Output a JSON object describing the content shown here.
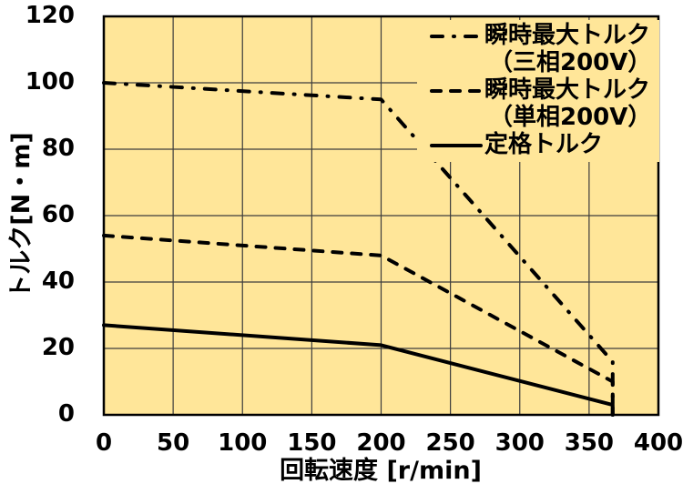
{
  "chart_data": {
    "type": "line",
    "title": "",
    "xlabel": "回転速度 [r/min]",
    "ylabel": "トルク[N・m]",
    "xlim": [
      0,
      400
    ],
    "ylim": [
      0,
      120
    ],
    "x_ticks": [
      0,
      50,
      100,
      150,
      200,
      250,
      300,
      350,
      400
    ],
    "y_ticks": [
      0,
      20,
      40,
      60,
      80,
      100,
      120
    ],
    "grid": true,
    "plot_bg_color": "#FFE699",
    "grid_color": "#3d3d3d",
    "line_color": "#000000",
    "series": [
      {
        "name": "瞬時最大トルク（三相200V）",
        "style": "dashdot",
        "points": [
          [
            0,
            100
          ],
          [
            200,
            95
          ],
          [
            367,
            16
          ],
          [
            367,
            0
          ]
        ]
      },
      {
        "name": "瞬時最大トルク（単相200V）",
        "style": "dashed",
        "points": [
          [
            0,
            54
          ],
          [
            200,
            48
          ],
          [
            367,
            10
          ],
          [
            367,
            0
          ]
        ]
      },
      {
        "name": "定格トルク",
        "style": "solid",
        "points": [
          [
            0,
            27
          ],
          [
            200,
            21
          ],
          [
            367,
            3
          ],
          [
            367,
            0
          ]
        ]
      }
    ],
    "legend": {
      "position": "top-right",
      "items": [
        {
          "line1": "瞬時最大トルク",
          "line2": "（三相200V）",
          "style": "dashdot"
        },
        {
          "line1": "瞬時最大トルク",
          "line2": "（単相200V）",
          "style": "dashed"
        },
        {
          "line1": "定格トルク",
          "line2": "",
          "style": "solid"
        }
      ]
    }
  }
}
